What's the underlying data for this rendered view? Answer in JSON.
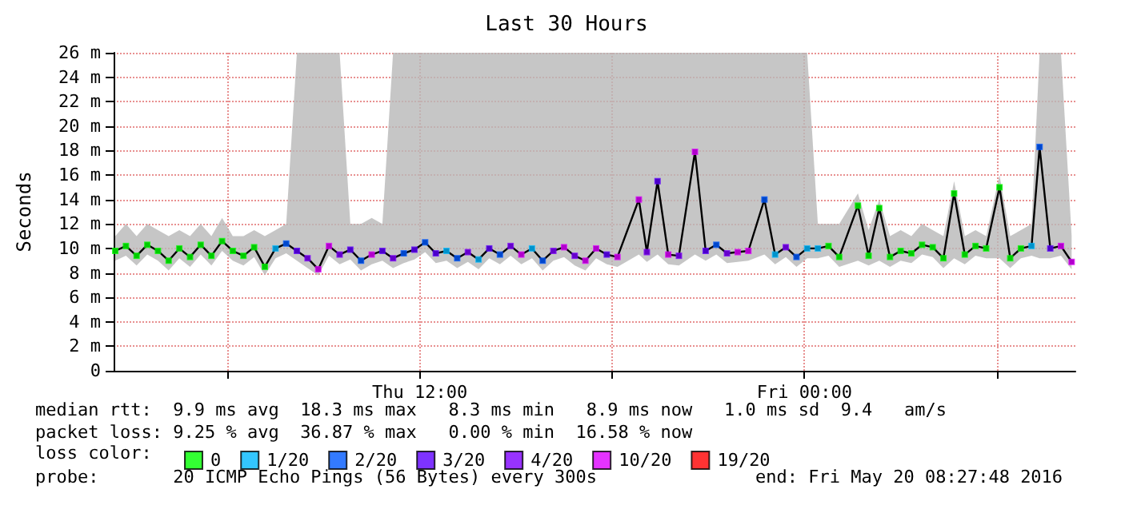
{
  "chart_data": {
    "type": "line",
    "title": "Last 30 Hours",
    "ylabel": "Seconds",
    "legend_title": "loss color:",
    "legend": "bottom",
    "grid": true,
    "marker": "square",
    "xlim": [
      "2016-05-19T02:27",
      "2016-05-20T08:27"
    ],
    "xticks": [
      {
        "value": "2016-05-19T06:00",
        "label": null
      },
      {
        "value": "2016-05-19T12:00",
        "label": "Thu 12:00"
      },
      {
        "value": "2016-05-19T18:00",
        "label": null
      },
      {
        "value": "2016-05-20T00:00",
        "label": "Fri 00:00"
      },
      {
        "value": "2016-05-20T06:00",
        "label": null
      }
    ],
    "ylim": [
      0,
      26
    ],
    "yticks": [
      0,
      {
        "value": 2,
        "label": "2 m"
      },
      {
        "value": 4,
        "label": "4 m"
      },
      {
        "value": 6,
        "label": "6 m"
      },
      {
        "value": 8,
        "label": "8 m"
      },
      {
        "value": 10,
        "label": "10 m"
      },
      {
        "value": 12,
        "label": "12 m"
      },
      {
        "value": 14,
        "label": "14 m"
      },
      {
        "value": 16,
        "label": "16 m"
      },
      {
        "value": 18,
        "label": "18 m"
      },
      {
        "value": 20,
        "label": "20 m"
      },
      {
        "value": 22,
        "label": "22 m"
      },
      {
        "value": 24,
        "label": "24 m"
      },
      {
        "value": 26,
        "label": "26 m"
      }
    ],
    "series": [
      {
        "color": "#000000",
        "x": [
          "2016-05-19T02:30",
          "2016-05-19T02:50",
          "2016-05-19T03:10",
          "2016-05-19T03:30",
          "2016-05-19T03:50",
          "2016-05-19T04:10",
          "2016-05-19T04:30",
          "2016-05-19T04:50",
          "2016-05-19T05:10",
          "2016-05-19T05:30",
          "2016-05-19T05:50",
          "2016-05-19T06:10",
          "2016-05-19T06:30",
          "2016-05-19T06:50",
          "2016-05-19T07:10",
          "2016-05-19T07:30",
          "2016-05-19T07:50",
          "2016-05-19T08:10",
          "2016-05-19T08:30",
          "2016-05-19T08:50",
          "2016-05-19T09:10",
          "2016-05-19T09:30",
          "2016-05-19T09:50",
          "2016-05-19T10:10",
          "2016-05-19T10:30",
          "2016-05-19T10:50",
          "2016-05-19T11:10",
          "2016-05-19T11:30",
          "2016-05-19T11:50",
          "2016-05-19T12:10",
          "2016-05-19T12:30",
          "2016-05-19T12:50",
          "2016-05-19T13:10",
          "2016-05-19T13:30",
          "2016-05-19T13:50",
          "2016-05-19T14:10",
          "2016-05-19T14:30",
          "2016-05-19T14:50",
          "2016-05-19T15:10",
          "2016-05-19T15:30",
          "2016-05-19T15:50",
          "2016-05-19T16:10",
          "2016-05-19T16:30",
          "2016-05-19T16:50",
          "2016-05-19T17:10",
          "2016-05-19T17:30",
          "2016-05-19T17:50",
          "2016-05-19T18:10",
          "2016-05-19T18:50",
          "2016-05-19T19:05",
          "2016-05-19T19:25",
          "2016-05-19T19:45",
          "2016-05-19T20:05",
          "2016-05-19T20:35",
          "2016-05-19T20:55",
          "2016-05-19T21:15",
          "2016-05-19T21:35",
          "2016-05-19T21:55",
          "2016-05-19T22:15",
          "2016-05-19T22:45",
          "2016-05-19T23:05",
          "2016-05-19T23:25",
          "2016-05-19T23:45",
          "2016-05-20T00:05",
          "2016-05-20T00:25",
          "2016-05-20T00:45",
          "2016-05-20T01:05",
          "2016-05-20T01:40",
          "2016-05-20T02:00",
          "2016-05-20T02:20",
          "2016-05-20T02:40",
          "2016-05-20T03:00",
          "2016-05-20T03:20",
          "2016-05-20T03:40",
          "2016-05-20T04:00",
          "2016-05-20T04:20",
          "2016-05-20T04:40",
          "2016-05-20T05:00",
          "2016-05-20T05:20",
          "2016-05-20T05:40",
          "2016-05-20T06:05",
          "2016-05-20T06:25",
          "2016-05-20T06:45",
          "2016-05-20T07:05",
          "2016-05-20T07:20",
          "2016-05-20T07:40",
          "2016-05-20T08:00",
          "2016-05-20T08:20"
        ],
        "values": [
          9.8,
          10.2,
          9.4,
          10.3,
          9.8,
          9,
          10,
          9.3,
          10.3,
          9.4,
          10.6,
          9.8,
          9.4,
          10.1,
          8.5,
          10,
          10.4,
          9.8,
          9.2,
          8.3,
          10.2,
          9.5,
          9.9,
          9,
          9.5,
          9.8,
          9.2,
          9.6,
          9.9,
          10.5,
          9.6,
          9.8,
          9.2,
          9.7,
          9.1,
          10,
          9.5,
          10.2,
          9.5,
          10,
          9,
          9.8,
          10.1,
          9.4,
          9,
          10,
          9.5,
          9.3,
          14,
          9.7,
          15.5,
          9.5,
          9.4,
          17.9,
          9.8,
          10.3,
          9.6,
          9.7,
          9.8,
          14,
          9.5,
          10.1,
          9.3,
          10,
          10,
          10.2,
          9.3,
          13.5,
          9.4,
          13.3,
          9.3,
          9.8,
          9.6,
          10.3,
          10.1,
          9.2,
          14.5,
          9.5,
          10.2,
          10,
          15,
          9.2,
          10,
          10.2,
          18.3,
          10,
          10.2,
          8.9
        ],
        "lower": [
          9,
          9.4,
          8.6,
          9.5,
          9,
          8.2,
          9.2,
          8.5,
          9.5,
          8.6,
          9.8,
          9,
          8.6,
          9.3,
          7.8,
          9.2,
          9.6,
          9,
          8.4,
          7.8,
          9.4,
          8.7,
          9.1,
          8.2,
          8.7,
          9,
          8.4,
          8.8,
          9.1,
          9.7,
          8.8,
          9,
          8.4,
          8.9,
          8.3,
          9.2,
          8.7,
          9.4,
          8.7,
          9.2,
          8.2,
          9,
          9.3,
          8.6,
          8.2,
          9.2,
          8.7,
          8.5,
          9.5,
          8.9,
          9.5,
          8.7,
          8.6,
          9.5,
          9,
          9.5,
          8.8,
          8.9,
          9,
          9.5,
          8.7,
          9.3,
          8.5,
          9.2,
          9.2,
          9.4,
          8.5,
          9,
          8.6,
          9,
          8.5,
          9,
          8.8,
          9.5,
          9.3,
          8.4,
          9.2,
          8.7,
          9.4,
          9.2,
          9.2,
          8.4,
          9.2,
          9.4,
          9.2,
          9.2,
          9.4,
          8.3
        ],
        "upper": [
          11,
          12,
          11,
          12,
          11.5,
          11,
          11.5,
          11,
          12,
          11,
          12.5,
          11,
          11,
          11.5,
          11,
          11.5,
          12,
          26,
          26,
          26,
          26,
          26,
          12,
          12,
          12.5,
          12,
          26,
          26,
          26,
          26,
          26,
          26,
          26,
          26,
          26,
          26,
          26,
          26,
          26,
          26,
          26,
          26,
          26,
          26,
          26,
          26,
          26,
          26,
          26,
          26,
          26,
          26,
          26,
          26,
          26,
          26,
          26,
          26,
          26,
          26,
          26,
          26,
          26,
          26,
          12,
          12,
          12,
          14.5,
          11.5,
          14,
          11,
          11.5,
          11,
          12,
          11.5,
          11,
          15.5,
          11,
          11.5,
          11,
          16,
          11,
          11.5,
          12,
          26,
          26,
          26,
          11
        ]
      },
      {
        "type": "scatter",
        "name": "0",
        "color": "#00ff00",
        "x": [
          "2016-05-19T02:30",
          "2016-05-19T02:50",
          "2016-05-19T03:10",
          "2016-05-19T03:30",
          "2016-05-19T03:50",
          "2016-05-19T04:10",
          "2016-05-19T04:30",
          "2016-05-19T04:50",
          "2016-05-19T05:10",
          "2016-05-19T05:30",
          "2016-05-19T05:50",
          "2016-05-19T06:10",
          "2016-05-19T06:30",
          "2016-05-19T06:50",
          "2016-05-19T07:10",
          "2016-05-20T00:45",
          "2016-05-20T01:05",
          "2016-05-20T01:40",
          "2016-05-20T02:00",
          "2016-05-20T02:20",
          "2016-05-20T02:40",
          "2016-05-20T03:00",
          "2016-05-20T03:20",
          "2016-05-20T03:40",
          "2016-05-20T04:00",
          "2016-05-20T04:20",
          "2016-05-20T04:40",
          "2016-05-20T05:00",
          "2016-05-20T05:20",
          "2016-05-20T05:40",
          "2016-05-20T06:05",
          "2016-05-20T06:25",
          "2016-05-20T06:45"
        ],
        "values": [
          9.8,
          10.2,
          9.4,
          10.3,
          9.8,
          9,
          10,
          9.3,
          10.3,
          9.4,
          10.6,
          9.8,
          9.4,
          10.1,
          8.5,
          10.2,
          9.3,
          13.5,
          9.4,
          13.3,
          9.3,
          9.8,
          9.6,
          10.3,
          10.1,
          9.2,
          14.5,
          9.5,
          10.2,
          10,
          15,
          9.2,
          10
        ]
      },
      {
        "type": "scatter",
        "name": "1/20",
        "color": "#00b8ff",
        "x": [
          "2016-05-19T07:30",
          "2016-05-19T12:50",
          "2016-05-19T13:50",
          "2016-05-19T15:30",
          "2016-05-19T23:05",
          "2016-05-20T00:05",
          "2016-05-20T00:25",
          "2016-05-20T07:05"
        ],
        "values": [
          10,
          9.8,
          9.1,
          10,
          9.5,
          10,
          10,
          10.2
        ]
      },
      {
        "type": "scatter",
        "name": "2/20",
        "color": "#0059ff",
        "x": [
          "2016-05-19T07:50",
          "2016-05-19T10:10",
          "2016-05-19T11:30",
          "2016-05-19T12:10",
          "2016-05-19T13:10",
          "2016-05-19T14:30",
          "2016-05-19T15:50",
          "2016-05-19T21:15",
          "2016-05-19T22:45",
          "2016-05-19T23:45",
          "2016-05-20T07:20"
        ],
        "values": [
          10.4,
          9,
          9.6,
          10.5,
          9.2,
          9.5,
          9,
          10.3,
          14,
          9.3,
          18.3
        ]
      },
      {
        "type": "scatter",
        "name": "3/20",
        "color": "#5e00ff",
        "x": [
          "2016-05-19T08:10",
          "2016-05-19T09:50",
          "2016-05-19T10:50",
          "2016-05-19T11:50",
          "2016-05-19T12:30",
          "2016-05-19T14:10",
          "2016-05-19T17:50",
          "2016-05-19T19:25",
          "2016-05-19T20:55",
          "2016-05-20T07:40"
        ],
        "values": [
          9.8,
          9.9,
          9.8,
          9.9,
          9.6,
          10,
          9.5,
          15.5,
          9.8,
          10
        ]
      },
      {
        "type": "scatter",
        "name": "4/20",
        "color": "#7e00ff",
        "x": [
          "2016-05-19T08:30",
          "2016-05-19T09:30",
          "2016-05-19T11:10",
          "2016-05-19T13:30",
          "2016-05-19T14:50",
          "2016-05-19T16:10",
          "2016-05-19T16:50",
          "2016-05-19T19:05",
          "2016-05-19T20:05",
          "2016-05-19T21:35",
          "2016-05-19T23:25"
        ],
        "values": [
          9.2,
          9.5,
          9.2,
          9.7,
          10.2,
          9.8,
          9.4,
          9.7,
          9.4,
          9.6,
          10.1
        ]
      },
      {
        "type": "scatter",
        "name": "10/20",
        "color": "#dd00ff",
        "x": [
          "2016-05-19T08:50",
          "2016-05-19T09:10",
          "2016-05-19T10:30",
          "2016-05-19T15:10",
          "2016-05-19T16:30",
          "2016-05-19T17:10",
          "2016-05-19T17:30",
          "2016-05-19T18:10",
          "2016-05-19T18:50",
          "2016-05-19T19:45",
          "2016-05-19T20:35",
          "2016-05-19T21:55",
          "2016-05-19T22:15",
          "2016-05-20T08:00",
          "2016-05-20T08:20"
        ],
        "values": [
          8.3,
          10.2,
          9.5,
          9.5,
          10.1,
          9,
          10,
          9.3,
          14,
          9.5,
          17.9,
          9.7,
          9.8,
          10.2,
          8.9
        ]
      },
      {
        "type": "scatter",
        "name": "19/20",
        "color": "#ff0000"
      }
    ],
    "annotations": [
      "median rtt:  9.9 ms avg  18.3 ms max   8.3 ms min   8.9 ms now   1.0 ms sd  9.4   am/s",
      "packet loss: 9.25 % avg  36.87 % max   0.00 % min  16.58 % now",
      "probe:       20 ICMP Echo Pings (56 Bytes) every 300s",
      "end: Fri May 20 08:27:48 2016"
    ]
  }
}
